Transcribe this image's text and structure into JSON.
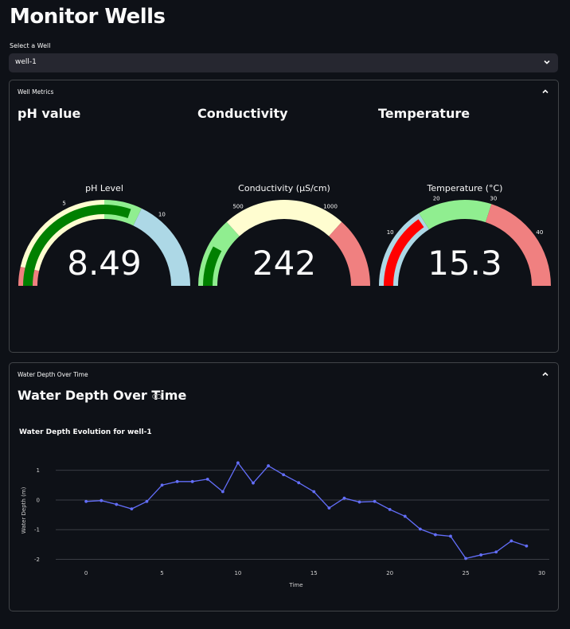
{
  "page": {
    "title": "Monitor Wells"
  },
  "select": {
    "label": "Select a Well",
    "value": "well-1"
  },
  "metrics_panel": {
    "header": "Well Metrics",
    "gauges": [
      {
        "column_title": "pH value",
        "gauge_title": "pH Level",
        "value": 8.49,
        "value_text": "8.49",
        "min": 0,
        "max": 14,
        "bar_color": "#008000",
        "steps": [
          {
            "from": 0,
            "to": 1,
            "color": "#f08080"
          },
          {
            "from": 1,
            "to": 7,
            "color": "#fffdd0"
          },
          {
            "from": 7,
            "to": 9,
            "color": "#90ee90"
          },
          {
            "from": 9,
            "to": 14,
            "color": "#add8e6"
          }
        ],
        "ticks": [
          {
            "value": 5,
            "label": "5"
          },
          {
            "value": 10,
            "label": "10"
          }
        ]
      },
      {
        "column_title": "Conductivity",
        "gauge_title": "Conductivity (µS/cm)",
        "value": 242,
        "value_text": "242",
        "min": 0,
        "max": 1500,
        "bar_color": "#008000",
        "steps": [
          {
            "from": 0,
            "to": 400,
            "color": "#90ee90"
          },
          {
            "from": 400,
            "to": 1100,
            "color": "#fffdd0"
          },
          {
            "from": 1100,
            "to": 1500,
            "color": "#f08080"
          }
        ],
        "ticks": [
          {
            "value": 500,
            "label": "500"
          },
          {
            "value": 1000,
            "label": "1000"
          }
        ]
      },
      {
        "column_title": "Temperature",
        "gauge_title": "Temperature (°C)",
        "value": 15.3,
        "value_text": "15.3",
        "min": 0,
        "max": 50,
        "bar_color": "#ff0000",
        "steps": [
          {
            "from": 0,
            "to": 16,
            "color": "#add8e6"
          },
          {
            "from": 16,
            "to": 30,
            "color": "#90ee90"
          },
          {
            "from": 30,
            "to": 50,
            "color": "#f08080"
          }
        ],
        "ticks": [
          {
            "value": 10,
            "label": "10"
          },
          {
            "value": 20,
            "label": "20"
          },
          {
            "value": 30,
            "label": "30"
          },
          {
            "value": 40,
            "label": "40"
          }
        ]
      }
    ]
  },
  "depth_panel": {
    "header": "Water Depth Over Time",
    "section_title": "Water Depth Over Time"
  },
  "chart_data": {
    "type": "line",
    "title": "Water Depth Evolution for well-1",
    "xlabel": "Time",
    "ylabel": "Water Depth (m)",
    "xlim": [
      -2,
      30.5
    ],
    "ylim": [
      -2.2,
      1.5
    ],
    "xticks": [
      0,
      5,
      10,
      15,
      20,
      25,
      30
    ],
    "yticks": [
      -2,
      -1,
      0,
      1
    ],
    "grid": true,
    "line_color": "#636efa",
    "x": [
      0,
      1,
      2,
      3,
      4,
      5,
      6,
      7,
      8,
      9,
      10,
      11,
      12,
      13,
      14,
      15,
      16,
      17,
      18,
      19,
      20,
      21,
      22,
      23,
      24,
      25,
      26,
      27,
      28,
      29
    ],
    "y": [
      -0.05,
      -0.02,
      -0.15,
      -0.3,
      -0.05,
      0.5,
      0.62,
      0.62,
      0.7,
      0.28,
      1.25,
      0.57,
      1.15,
      0.85,
      0.58,
      0.28,
      -0.27,
      0.06,
      -0.07,
      -0.05,
      -0.32,
      -0.55,
      -0.98,
      -1.17,
      -1.22,
      -1.97,
      -1.85,
      -1.75,
      -1.38,
      -1.55
    ]
  }
}
